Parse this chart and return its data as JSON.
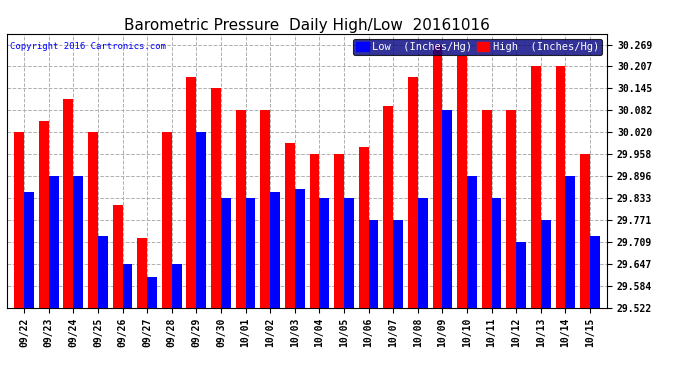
{
  "title": "Barometric Pressure  Daily High/Low  20161016",
  "copyright": "Copyright 2016 Cartronics.com",
  "legend_low": "Low  (Inches/Hg)",
  "legend_high": "High  (Inches/Hg)",
  "dates": [
    "09/22",
    "09/23",
    "09/24",
    "09/25",
    "09/26",
    "09/27",
    "09/28",
    "09/29",
    "09/30",
    "10/01",
    "10/02",
    "10/03",
    "10/04",
    "10/05",
    "10/06",
    "10/07",
    "10/08",
    "10/09",
    "10/10",
    "10/11",
    "10/12",
    "10/13",
    "10/14",
    "10/15"
  ],
  "high_values": [
    30.02,
    30.051,
    30.114,
    30.02,
    29.814,
    29.72,
    30.02,
    30.176,
    30.145,
    30.082,
    30.082,
    29.99,
    29.958,
    29.958,
    29.978,
    30.095,
    30.176,
    30.269,
    30.238,
    30.082,
    30.082,
    30.207,
    30.207,
    29.958
  ],
  "low_values": [
    29.851,
    29.896,
    29.896,
    29.725,
    29.647,
    29.609,
    29.647,
    30.02,
    29.833,
    29.833,
    29.851,
    29.858,
    29.833,
    29.833,
    29.771,
    29.771,
    29.833,
    30.082,
    29.896,
    29.833,
    29.709,
    29.771,
    29.896,
    29.725
  ],
  "ylim_min": 29.522,
  "ylim_max": 30.3,
  "yticks": [
    29.522,
    29.584,
    29.647,
    29.709,
    29.771,
    29.833,
    29.896,
    29.958,
    30.02,
    30.082,
    30.145,
    30.207,
    30.269
  ],
  "color_low": "#0000ff",
  "color_high": "#ff0000",
  "bg_color": "#ffffff",
  "grid_color": "#b0b0b0",
  "title_fontsize": 11,
  "tick_fontsize": 7,
  "bar_width": 0.4
}
